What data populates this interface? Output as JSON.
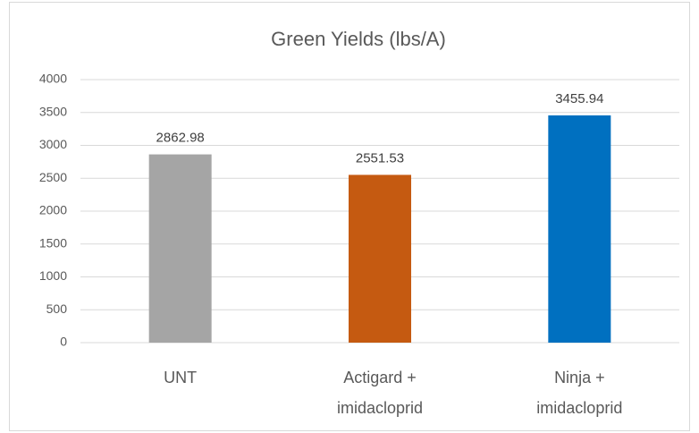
{
  "chart_data": {
    "type": "bar",
    "title": "Green Yields (lbs/A)",
    "categories": [
      "UNT",
      "Actigard + imidacloprid",
      "Ninja + imidacloprid"
    ],
    "values": [
      2862.98,
      2551.53,
      3455.94
    ],
    "colors": [
      "#a5a5a5",
      "#c55a11",
      "#0070c0"
    ],
    "ylim": [
      0,
      4000
    ],
    "yticks": [
      0,
      500,
      1000,
      1500,
      2000,
      2500,
      3000,
      3500,
      4000
    ],
    "grid": true
  }
}
